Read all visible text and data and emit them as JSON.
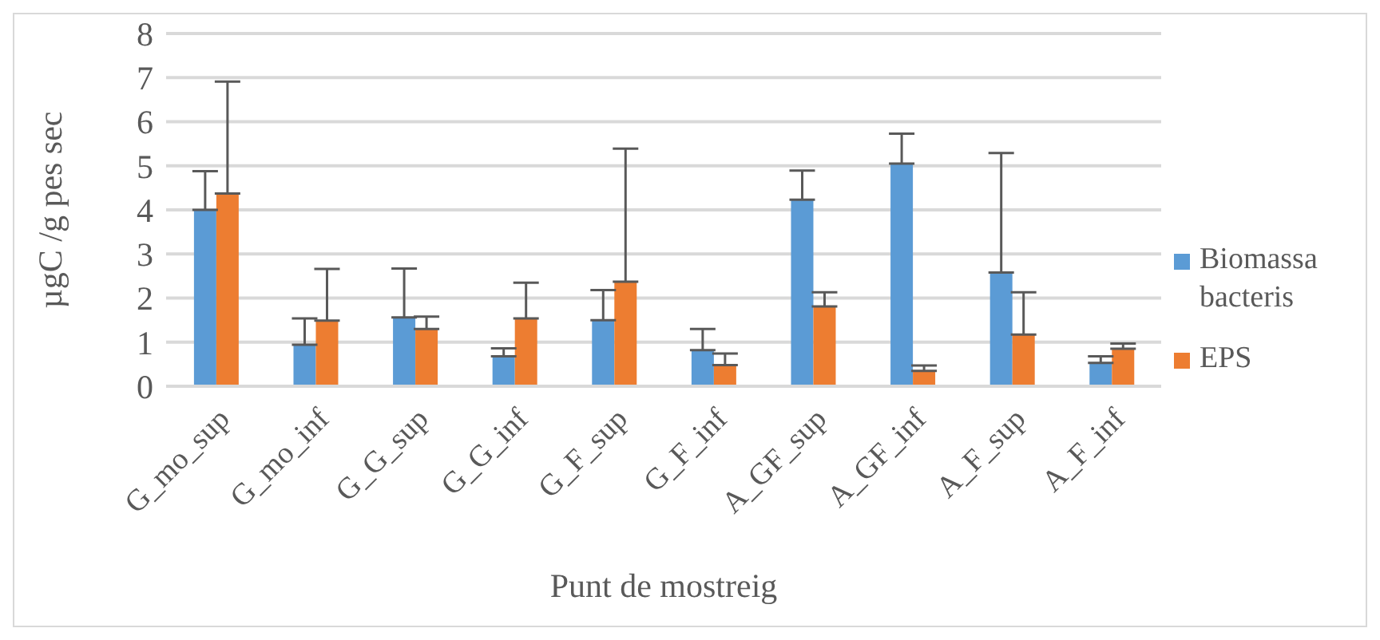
{
  "chart_data": {
    "type": "bar",
    "xlabel": "Punt de mostreig",
    "ylabel": "µgC /g pes sec",
    "categories": [
      "G_mo_sup",
      "G_mo_inf",
      "G_G_sup",
      "G_G_inf",
      "G_F_sup",
      "G_F_inf",
      "A_GF_sup",
      "A_GF_inf",
      "A_F_sup",
      "A_F_inf"
    ],
    "series": [
      {
        "name": "Biomassa bacteris",
        "color": "#5b9bd5",
        "values": [
          4.0,
          0.94,
          1.56,
          0.68,
          1.5,
          0.82,
          4.23,
          5.05,
          2.58,
          0.53
        ],
        "errors": [
          [
            4.0,
            4.88
          ],
          [
            0.94,
            1.54
          ],
          [
            1.56,
            2.67
          ],
          [
            0.68,
            0.86
          ],
          [
            1.5,
            2.18
          ],
          [
            0.82,
            1.3
          ],
          [
            4.23,
            4.89
          ],
          [
            5.05,
            5.73
          ],
          [
            2.58,
            5.29
          ],
          [
            0.53,
            0.68
          ]
        ]
      },
      {
        "name": "EPS",
        "color": "#ed7d31",
        "values": [
          4.37,
          1.49,
          1.3,
          1.54,
          2.37,
          0.48,
          1.81,
          0.35,
          1.17,
          0.85
        ],
        "errors": [
          [
            4.37,
            6.91
          ],
          [
            1.49,
            2.66
          ],
          [
            1.3,
            1.58
          ],
          [
            1.54,
            2.35
          ],
          [
            2.37,
            5.39
          ],
          [
            0.48,
            0.74
          ],
          [
            1.81,
            2.13
          ],
          [
            0.35,
            0.47
          ],
          [
            1.17,
            2.13
          ],
          [
            0.85,
            0.97
          ]
        ]
      }
    ],
    "ylim": [
      0,
      8
    ],
    "yticks": [
      0,
      1,
      2,
      3,
      4,
      5,
      6,
      7,
      8
    ],
    "grid": "y",
    "legend": "right"
  }
}
